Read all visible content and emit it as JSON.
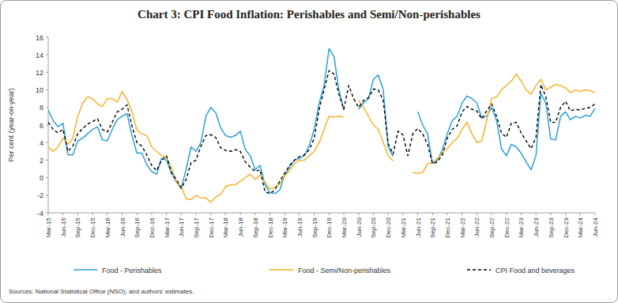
{
  "chart_data": {
    "type": "line",
    "title": "Chart 3: CPI Food Inflation: Perishables and Semi/Non-perishables",
    "y_label": "Per cent (year-on-year)",
    "source": "Sources: National Statistical Office (NSO); and authors' estimates.",
    "categories": [
      "Mar-15",
      null,
      null,
      "Jun-15",
      null,
      null,
      "Sep-15",
      null,
      null,
      "Dec-15",
      null,
      null,
      "Mar-16",
      null,
      null,
      "Jun-16",
      null,
      null,
      "Sep-16",
      null,
      null,
      "Dec-16",
      null,
      null,
      "Mar-17",
      null,
      null,
      "Jun-17",
      null,
      null,
      "Sep-17",
      null,
      null,
      "Dec-17",
      null,
      null,
      "Mar-18",
      null,
      null,
      "Jun-18",
      null,
      null,
      "Sep-18",
      null,
      null,
      "Dec-18",
      null,
      null,
      "Mar-19",
      null,
      null,
      "Jun-19",
      null,
      null,
      "Sep-19",
      null,
      null,
      "Dec-19",
      null,
      null,
      "Mar-20",
      null,
      null,
      "Jun-20",
      null,
      null,
      "Sep-20",
      null,
      null,
      "Dec-20",
      null,
      null,
      "Mar-21",
      null,
      null,
      "Jun-21",
      null,
      null,
      "Sep-21",
      null,
      null,
      "Dec-21",
      null,
      null,
      "Mar-22",
      null,
      null,
      "Jun-22",
      null,
      null,
      "Sep-22",
      null,
      null,
      "Dec-22",
      null,
      null,
      "Mar-23",
      null,
      null,
      "Jun-23",
      null,
      null,
      "Sep-23",
      null,
      null,
      "Dec-23",
      null,
      null,
      "Mar-24",
      null,
      null,
      "Jun-24"
    ],
    "series": [
      {
        "name": "Food - Perishables",
        "color": "#2b9fd9",
        "line_style": "solid",
        "values": [
          7.7,
          6.5,
          5.8,
          6.2,
          2.6,
          2.6,
          4.2,
          4.5,
          5.0,
          5.5,
          5.8,
          4.3,
          4.2,
          5.5,
          6.6,
          7.0,
          7.3,
          4.8,
          2.8,
          2.8,
          1.5,
          0.7,
          0.4,
          2.2,
          2.0,
          0.5,
          -0.5,
          -1.2,
          1.0,
          3.5,
          3.0,
          4.0,
          7.0,
          8.0,
          7.4,
          5.7,
          4.8,
          4.6,
          4.8,
          5.3,
          3.2,
          2.5,
          0.9,
          1.4,
          -0.8,
          -1.7,
          -1.8,
          -1.4,
          0.3,
          1.2,
          2.0,
          2.2,
          2.5,
          3.7,
          5.5,
          8.5,
          10.5,
          14.7,
          13.8,
          10.0,
          7.7,
          null,
          null,
          7.8,
          8.5,
          9.0,
          11.2,
          11.7,
          10.0,
          3.5,
          2.4,
          null,
          null,
          null,
          null,
          7.5,
          6.0,
          5.0,
          1.6,
          2.0,
          3.2,
          5.0,
          6.5,
          7.0,
          8.5,
          9.3,
          9.0,
          8.5,
          6.8,
          7.0,
          8.0,
          6.5,
          3.3,
          2.5,
          3.8,
          3.5,
          2.8,
          1.8,
          0.9,
          2.5,
          9.6,
          8.5,
          4.4,
          4.3,
          7.0,
          7.5,
          6.6,
          7.0,
          6.8,
          7.1,
          7.0,
          7.9
        ]
      },
      {
        "name": "Food - Semi/Non-perishables",
        "color": "#f6b32a",
        "line_style": "solid",
        "values": [
          3.5,
          3.0,
          3.5,
          4.5,
          3.8,
          4.5,
          7.0,
          8.5,
          9.2,
          9.0,
          8.4,
          8.1,
          9.0,
          9.0,
          8.6,
          9.8,
          8.9,
          7.5,
          5.4,
          5.0,
          4.8,
          3.5,
          3.0,
          2.5,
          2.3,
          1.2,
          -0.5,
          -1.0,
          -2.4,
          -2.5,
          -2.0,
          -2.3,
          -2.3,
          -2.8,
          -2.2,
          -1.9,
          -1.0,
          -0.8,
          -0.8,
          -0.4,
          0.0,
          0.4,
          -0.2,
          0.3,
          -0.5,
          -1.3,
          -1.1,
          -0.7,
          0.2,
          0.8,
          1.6,
          2.0,
          2.0,
          2.5,
          3.0,
          4.0,
          5.5,
          7.0,
          6.9,
          7.0,
          6.9,
          null,
          null,
          8.8,
          8.0,
          7.0,
          6.0,
          5.5,
          4.0,
          2.5,
          1.9,
          null,
          null,
          null,
          0.6,
          0.5,
          0.6,
          1.6,
          1.7,
          2.2,
          2.8,
          3.3,
          4.0,
          4.5,
          5.5,
          6.3,
          5.0,
          4.0,
          4.2,
          6.5,
          9.0,
          9.2,
          10.0,
          10.5,
          11.0,
          11.8,
          11.0,
          10.0,
          9.5,
          10.5,
          11.2,
          10.0,
          10.3,
          10.6,
          10.5,
          10.2,
          9.7,
          10.0,
          9.8,
          10.0,
          9.9,
          9.7
        ]
      },
      {
        "name": "CPI Food and beverages",
        "color": "#000000",
        "line_style": "dashed",
        "values": [
          6.3,
          5.5,
          5.1,
          5.5,
          3.0,
          3.6,
          5.0,
          5.6,
          6.1,
          6.4,
          6.7,
          5.5,
          5.2,
          6.3,
          7.5,
          7.8,
          8.3,
          5.9,
          4.0,
          3.6,
          2.6,
          1.4,
          0.8,
          2.0,
          2.5,
          0.6,
          -0.2,
          -1.2,
          -0.2,
          1.7,
          2.0,
          3.6,
          4.8,
          4.9,
          4.6,
          3.4,
          3.1,
          3.0,
          3.2,
          3.0,
          1.8,
          1.2,
          0.7,
          0.9,
          -1.6,
          -1.8,
          -1.4,
          -0.4,
          0.5,
          1.4,
          2.0,
          2.4,
          2.6,
          3.2,
          4.5,
          7.8,
          10.0,
          12.2,
          11.8,
          9.5,
          7.8,
          10.5,
          9.0,
          8.0,
          8.8,
          9.1,
          10.1,
          10.0,
          8.8,
          3.9,
          2.7,
          5.3,
          4.9,
          2.5,
          5.0,
          5.6,
          5.0,
          3.8,
          1.6,
          1.8,
          2.6,
          4.5,
          5.5,
          5.9,
          7.5,
          8.1,
          7.8,
          7.6,
          6.7,
          7.6,
          8.4,
          7.0,
          5.1,
          4.6,
          6.2,
          6.3,
          5.1,
          4.2,
          3.3,
          4.6,
          10.6,
          9.2,
          6.3,
          6.3,
          8.0,
          8.7,
          7.6,
          7.8,
          7.7,
          7.9,
          8.0,
          8.4
        ]
      }
    ],
    "ylim": [
      -4,
      16
    ],
    "yticks": [
      -4,
      -2,
      0,
      2,
      4,
      6,
      8,
      10,
      12,
      14,
      16
    ],
    "grid": false,
    "legend": "bottom"
  }
}
